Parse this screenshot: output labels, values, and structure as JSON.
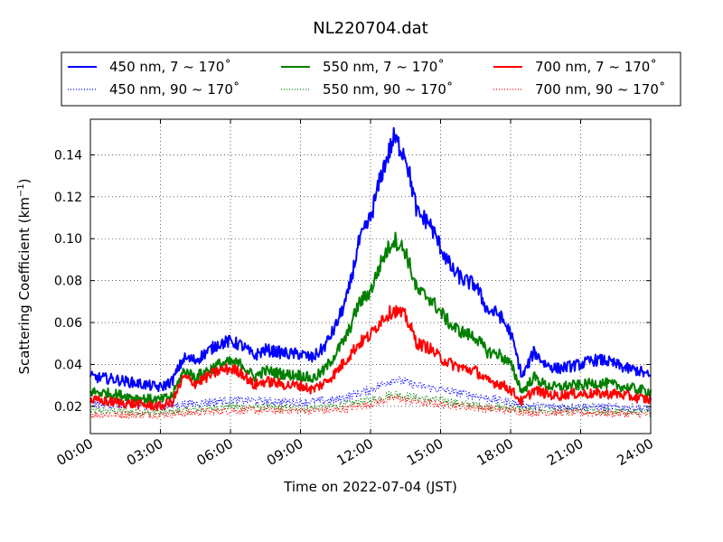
{
  "chart_data": {
    "type": "line",
    "title": "NL220704.dat",
    "xlabel": "Time on 2022-07-04 (JST)",
    "ylabel": "Scattering Coefficient (km",
    "ylabel_sup": "−1",
    "ylabel_close": ")",
    "xlim": [
      "00:00",
      "24:00"
    ],
    "ylim": [
      0.007,
      0.157
    ],
    "x_ticks": [
      "00:00",
      "03:00",
      "06:00",
      "09:00",
      "12:00",
      "15:00",
      "18:00",
      "21:00",
      "24:00"
    ],
    "y_ticks": [
      "0.02",
      "0.04",
      "0.06",
      "0.08",
      "0.10",
      "0.12",
      "0.14"
    ],
    "grid": true,
    "legend_position": "top, above plot",
    "series": [
      {
        "name": "450 nm, 7 ~ 170˚",
        "color": "#0000ff",
        "style": "solid",
        "x": [
          "00:00",
          "01:00",
          "02:00",
          "03:00",
          "03:30",
          "04:00",
          "04:30",
          "05:00",
          "05:30",
          "06:00",
          "06:30",
          "07:00",
          "07:30",
          "08:00",
          "08:30",
          "09:00",
          "09:30",
          "10:00",
          "10:30",
          "11:00",
          "11:30",
          "12:00",
          "12:30",
          "13:00",
          "13:30",
          "14:00",
          "14:30",
          "15:00",
          "15:30",
          "16:00",
          "16:30",
          "17:00",
          "17:30",
          "18:00",
          "18:30",
          "19:00",
          "19:30",
          "20:00",
          "20:30",
          "21:00",
          "21:30",
          "22:00",
          "22:30",
          "23:00",
          "23:30",
          "24:00"
        ],
        "y": [
          0.034,
          0.033,
          0.031,
          0.029,
          0.032,
          0.043,
          0.042,
          0.046,
          0.05,
          0.051,
          0.049,
          0.044,
          0.047,
          0.046,
          0.045,
          0.045,
          0.043,
          0.048,
          0.058,
          0.072,
          0.098,
          0.11,
          0.132,
          0.148,
          0.14,
          0.112,
          0.108,
          0.096,
          0.085,
          0.08,
          0.078,
          0.066,
          0.064,
          0.055,
          0.034,
          0.046,
          0.04,
          0.038,
          0.039,
          0.04,
          0.042,
          0.042,
          0.04,
          0.038,
          0.037,
          0.034
        ]
      },
      {
        "name": "550 nm, 7 ~ 170˚",
        "color": "#007f00",
        "style": "solid",
        "x": [
          "00:00",
          "01:00",
          "02:00",
          "03:00",
          "03:30",
          "04:00",
          "04:30",
          "05:00",
          "05:30",
          "06:00",
          "06:30",
          "07:00",
          "07:30",
          "08:00",
          "08:30",
          "09:00",
          "09:30",
          "10:00",
          "10:30",
          "11:00",
          "11:30",
          "12:00",
          "12:30",
          "13:00",
          "13:30",
          "14:00",
          "14:30",
          "15:00",
          "15:30",
          "16:00",
          "16:30",
          "17:00",
          "17:30",
          "18:00",
          "18:30",
          "19:00",
          "19:30",
          "20:00",
          "20:30",
          "21:00",
          "21:30",
          "22:00",
          "22:30",
          "23:00",
          "23:30",
          "24:00"
        ],
        "y": [
          0.027,
          0.026,
          0.024,
          0.023,
          0.025,
          0.037,
          0.034,
          0.037,
          0.04,
          0.041,
          0.04,
          0.034,
          0.037,
          0.036,
          0.035,
          0.035,
          0.033,
          0.037,
          0.045,
          0.054,
          0.069,
          0.075,
          0.09,
          0.1,
          0.094,
          0.075,
          0.072,
          0.065,
          0.058,
          0.055,
          0.053,
          0.046,
          0.045,
          0.04,
          0.027,
          0.034,
          0.03,
          0.029,
          0.03,
          0.03,
          0.031,
          0.031,
          0.03,
          0.029,
          0.028,
          0.027
        ]
      },
      {
        "name": "700 nm, 7 ~ 170˚",
        "color": "#ff0000",
        "style": "solid",
        "x": [
          "00:00",
          "01:00",
          "02:00",
          "03:00",
          "03:30",
          "04:00",
          "04:30",
          "05:00",
          "05:30",
          "06:00",
          "06:30",
          "07:00",
          "07:30",
          "08:00",
          "08:30",
          "09:00",
          "09:30",
          "10:00",
          "10:30",
          "11:00",
          "11:30",
          "12:00",
          "12:30",
          "13:00",
          "13:30",
          "14:00",
          "14:30",
          "15:00",
          "15:30",
          "16:00",
          "16:30",
          "17:00",
          "17:30",
          "18:00",
          "18:30",
          "19:00",
          "19:30",
          "20:00",
          "20:30",
          "21:00",
          "21:30",
          "22:00",
          "22:30",
          "23:00",
          "23:30",
          "24:00"
        ],
        "y": [
          0.023,
          0.022,
          0.021,
          0.02,
          0.022,
          0.034,
          0.031,
          0.034,
          0.037,
          0.038,
          0.036,
          0.03,
          0.032,
          0.031,
          0.03,
          0.03,
          0.028,
          0.031,
          0.036,
          0.043,
          0.05,
          0.054,
          0.062,
          0.066,
          0.063,
          0.05,
          0.048,
          0.043,
          0.04,
          0.038,
          0.037,
          0.032,
          0.031,
          0.028,
          0.022,
          0.028,
          0.026,
          0.025,
          0.026,
          0.026,
          0.026,
          0.026,
          0.026,
          0.025,
          0.024,
          0.023
        ]
      },
      {
        "name": "450 nm, 90 ~ 170˚",
        "color": "#0000ff",
        "style": "dotted",
        "x": [
          "00:00",
          "03:00",
          "06:00",
          "09:00",
          "10:30",
          "12:00",
          "13:00",
          "14:00",
          "15:00",
          "16:00",
          "18:00",
          "19:00",
          "21:00",
          "24:00"
        ],
        "y": [
          0.021,
          0.02,
          0.023,
          0.022,
          0.023,
          0.028,
          0.033,
          0.03,
          0.028,
          0.026,
          0.022,
          0.02,
          0.02,
          0.019
        ]
      },
      {
        "name": "550 nm, 90 ~ 170˚",
        "color": "#007f00",
        "style": "dotted",
        "x": [
          "00:00",
          "03:00",
          "06:00",
          "09:00",
          "10:30",
          "12:00",
          "13:00",
          "14:00",
          "15:00",
          "16:00",
          "18:00",
          "19:00",
          "21:00",
          "24:00"
        ],
        "y": [
          0.018,
          0.017,
          0.02,
          0.019,
          0.02,
          0.023,
          0.026,
          0.024,
          0.023,
          0.021,
          0.019,
          0.018,
          0.018,
          0.017
        ]
      },
      {
        "name": "700 nm, 90 ~ 170˚",
        "color": "#ff0000",
        "style": "dotted",
        "x": [
          "00:00",
          "03:00",
          "06:00",
          "09:00",
          "10:30",
          "12:00",
          "13:00",
          "14:00",
          "15:00",
          "16:00",
          "18:00",
          "19:00",
          "21:00",
          "24:00"
        ],
        "y": [
          0.016,
          0.016,
          0.018,
          0.018,
          0.018,
          0.021,
          0.024,
          0.022,
          0.021,
          0.02,
          0.018,
          0.017,
          0.017,
          0.016
        ]
      }
    ]
  }
}
